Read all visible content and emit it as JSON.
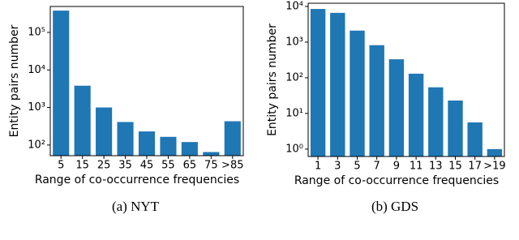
{
  "chart_data": [
    {
      "type": "bar",
      "ylog": true,
      "color": "#1f77b4",
      "ylabel": "Entity pairs number",
      "xlabel": "Range of co-occurrence frequencies",
      "caption": "(a)  NYT",
      "categories": [
        "5",
        "15",
        "25",
        "35",
        "45",
        "55",
        "65",
        "75",
        ">85"
      ],
      "values": [
        380000,
        3800,
        1000,
        410,
        230,
        165,
        120,
        65,
        430
      ],
      "ylim": [
        52,
        490000
      ],
      "yticks": [
        {
          "value": 100,
          "label": "10²"
        },
        {
          "value": 1000,
          "label": "10³"
        },
        {
          "value": 10000,
          "label": "10⁴"
        },
        {
          "value": 100000,
          "label": "10⁵"
        }
      ]
    },
    {
      "type": "bar",
      "ylog": true,
      "color": "#1f77b4",
      "ylabel": "Entity pairs number",
      "xlabel": "Range of co-occurrence frequencies",
      "caption": "(b)  GDS",
      "categories": [
        "1",
        "3",
        "5",
        "7",
        "9",
        "11",
        "13",
        "15",
        "17",
        ">19"
      ],
      "values": [
        8500,
        6600,
        2100,
        820,
        330,
        130,
        54,
        23,
        5.6,
        1
      ],
      "ylim": [
        0.62,
        12300
      ],
      "yticks": [
        {
          "value": 1,
          "label": "10⁰"
        },
        {
          "value": 10,
          "label": "10¹"
        },
        {
          "value": 100,
          "label": "10²"
        },
        {
          "value": 1000,
          "label": "10³"
        },
        {
          "value": 10000,
          "label": "10⁴"
        }
      ]
    }
  ]
}
